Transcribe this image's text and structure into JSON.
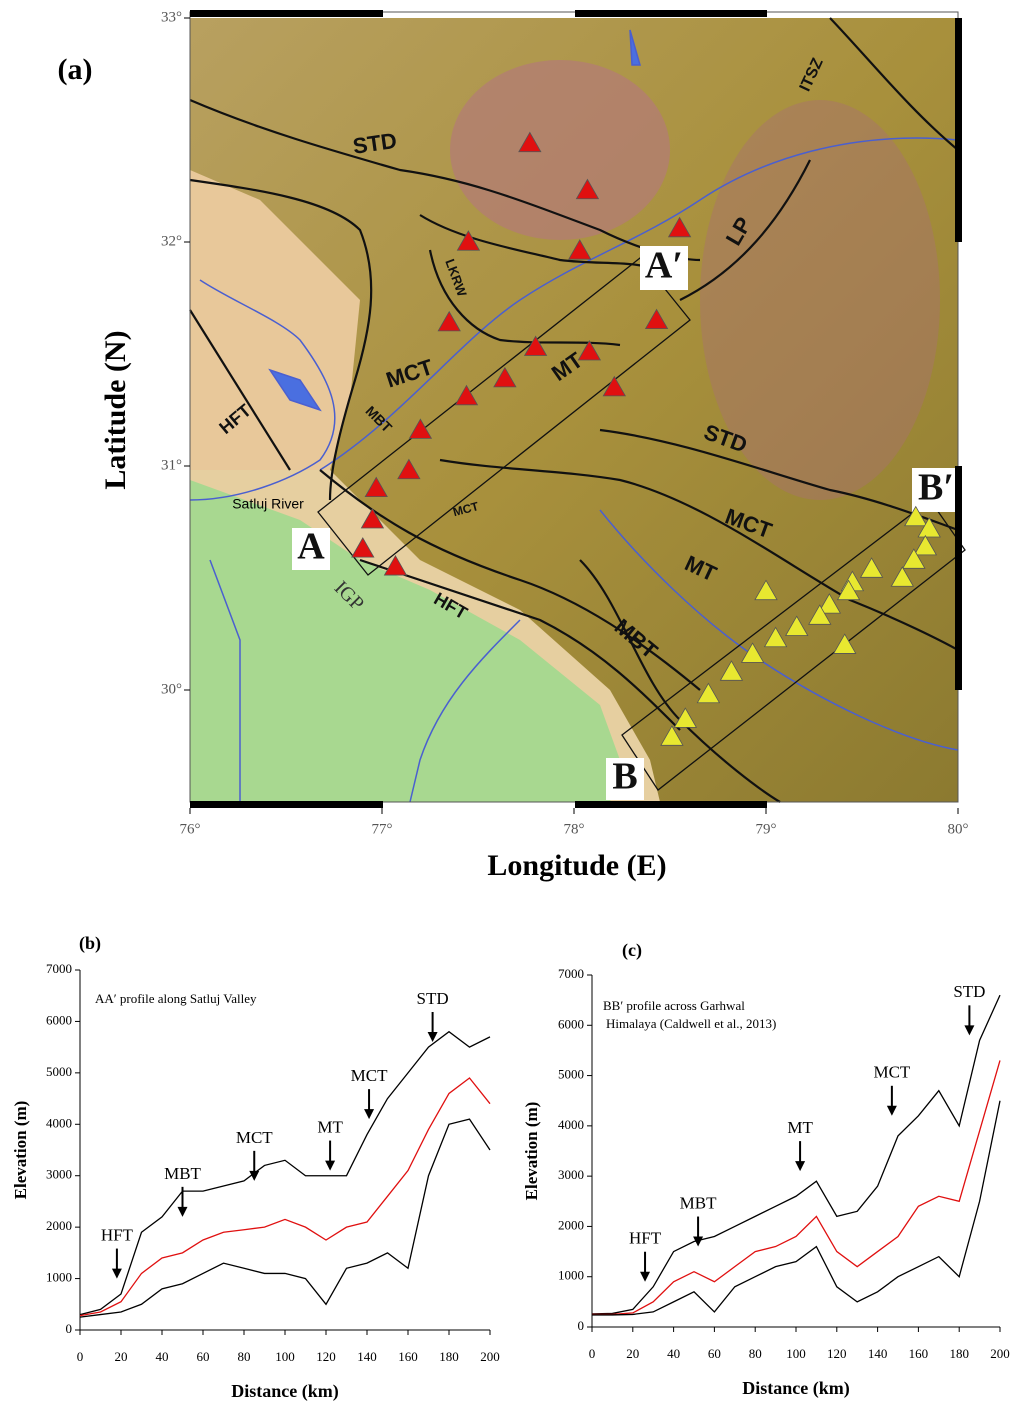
{
  "map": {
    "panel": "(a)",
    "xlabel": "Longitude (E)",
    "ylabel": "Latitude (N)",
    "xlim": [
      76,
      80
    ],
    "ylim": [
      29.5,
      33
    ],
    "xticks": [
      {
        "value": 76,
        "label": "76°"
      },
      {
        "value": 77,
        "label": "77°"
      },
      {
        "value": 78,
        "label": "78°"
      },
      {
        "value": 79,
        "label": "79°"
      },
      {
        "value": 80,
        "label": "80°"
      }
    ],
    "yticks": [
      {
        "value": 30,
        "label": "30°"
      },
      {
        "value": 31,
        "label": "31°"
      },
      {
        "value": 32,
        "label": "32°"
      },
      {
        "value": 33,
        "label": "33°"
      }
    ],
    "labels": [
      "STD",
      "STD",
      "MCT",
      "MCT",
      "MCT",
      "MT",
      "MT",
      "MBT",
      "MBT",
      "HFT",
      "HFT",
      "LKRW",
      "LP",
      "ITSZ",
      "Satluj River",
      "IGP",
      "A",
      "A′",
      "B",
      "B′"
    ],
    "stations": [
      {
        "color": "#e01010",
        "lon": [
          77.77,
          78.07,
          77.45,
          78.03,
          78.55,
          77.35,
          78.43,
          77.8,
          78.08,
          77.64,
          78.21,
          77.44,
          77.2,
          77.14,
          76.97,
          76.95,
          76.9,
          77.07
        ],
        "lat": [
          32.44,
          32.23,
          32.0,
          31.96,
          32.06,
          31.64,
          31.65,
          31.53,
          31.51,
          31.39,
          31.35,
          31.31,
          31.16,
          30.98,
          30.9,
          30.76,
          30.63,
          30.55
        ]
      },
      {
        "color": "#e8e830",
        "lon": [
          79.78,
          79.85,
          79.83,
          79.77,
          79.71,
          79.55,
          79.45,
          79.43,
          79.33,
          79.28,
          79.16,
          79.0,
          79.05,
          78.93,
          78.82,
          78.7,
          78.58,
          78.51,
          79.41
        ],
        "lat": [
          30.77,
          30.72,
          30.64,
          30.58,
          30.5,
          30.54,
          30.48,
          30.44,
          30.38,
          30.33,
          30.28,
          30.44,
          30.23,
          30.16,
          30.08,
          29.98,
          29.87,
          29.79,
          30.2
        ]
      }
    ]
  },
  "chart_data": [
    {
      "type": "line",
      "panel": "(b)",
      "subtitle": [
        "AA′ profile along Satluj Valley"
      ],
      "xlabel": "Distance (km)",
      "ylabel": "Elevation (m)",
      "x": [
        0,
        10,
        20,
        30,
        40,
        50,
        60,
        70,
        80,
        90,
        100,
        110,
        120,
        130,
        140,
        150,
        160,
        170,
        180,
        190,
        200
      ],
      "xlim": [
        0,
        200
      ],
      "ylim": [
        0,
        7000
      ],
      "xticks": [
        0,
        20,
        40,
        60,
        80,
        100,
        120,
        140,
        160,
        180,
        200
      ],
      "yticks": [
        0,
        1000,
        2000,
        3000,
        4000,
        5000,
        6000,
        7000
      ],
      "series": [
        {
          "color": "#000000",
          "values": [
            300,
            400,
            700,
            1900,
            2200,
            2700,
            2700,
            2800,
            2900,
            3200,
            3300,
            3000,
            3000,
            3000,
            3800,
            4500,
            5000,
            5500,
            5800,
            5500,
            5700
          ]
        },
        {
          "color": "#e01010",
          "values": [
            280,
            350,
            550,
            1100,
            1400,
            1500,
            1750,
            1900,
            1950,
            2000,
            2150,
            2000,
            1750,
            2000,
            2100,
            2600,
            3100,
            3900,
            4600,
            4900,
            4400
          ]
        },
        {
          "color": "#000000",
          "values": [
            250,
            300,
            350,
            500,
            800,
            900,
            1100,
            1300,
            1200,
            1100,
            1100,
            1000,
            500,
            1200,
            1300,
            1500,
            1200,
            3000,
            4000,
            4100,
            3500
          ]
        }
      ],
      "annotations": [
        {
          "label": "HFT",
          "x": 18,
          "y": 1000
        },
        {
          "label": "MBT",
          "x": 50,
          "y": 2200
        },
        {
          "label": "MCT",
          "x": 85,
          "y": 2900
        },
        {
          "label": "MT",
          "x": 122,
          "y": 3100
        },
        {
          "label": "MCT",
          "x": 141,
          "y": 4100
        },
        {
          "label": "STD",
          "x": 172,
          "y": 5600
        }
      ]
    },
    {
      "type": "line",
      "panel": "(c)",
      "subtitle": [
        "BB′ profile across Garhwal",
        "Himalaya (Caldwell et al., 2013)"
      ],
      "xlabel": "Distance (km)",
      "ylabel": "Elevation (m)",
      "x": [
        0,
        10,
        20,
        30,
        40,
        50,
        60,
        70,
        80,
        90,
        100,
        110,
        120,
        130,
        140,
        150,
        160,
        170,
        180,
        190,
        200
      ],
      "xlim": [
        0,
        200
      ],
      "ylim": [
        0,
        7000
      ],
      "xticks": [
        0,
        20,
        40,
        60,
        80,
        100,
        120,
        140,
        160,
        180,
        200
      ],
      "yticks": [
        0,
        1000,
        2000,
        3000,
        4000,
        5000,
        6000,
        7000
      ],
      "series": [
        {
          "color": "#000000",
          "values": [
            260,
            270,
            350,
            800,
            1500,
            1700,
            1800,
            2000,
            2200,
            2400,
            2600,
            2900,
            2200,
            2300,
            2800,
            3800,
            4200,
            4700,
            4000,
            5700,
            6600
          ]
        },
        {
          "color": "#e01010",
          "values": [
            250,
            250,
            280,
            500,
            900,
            1100,
            900,
            1200,
            1500,
            1600,
            1800,
            2200,
            1500,
            1200,
            1500,
            1800,
            2400,
            2600,
            2500,
            3900,
            5300
          ]
        },
        {
          "color": "#000000",
          "values": [
            240,
            240,
            250,
            300,
            500,
            700,
            300,
            800,
            1000,
            1200,
            1300,
            1600,
            800,
            500,
            700,
            1000,
            1200,
            1400,
            1000,
            2500,
            4500
          ]
        }
      ],
      "annotations": [
        {
          "label": "HFT",
          "x": 26,
          "y": 900
        },
        {
          "label": "MBT",
          "x": 52,
          "y": 1600
        },
        {
          "label": "MT",
          "x": 102,
          "y": 3100
        },
        {
          "label": "MCT",
          "x": 147,
          "y": 4200
        },
        {
          "label": "STD",
          "x": 185,
          "y": 5800
        }
      ]
    }
  ]
}
